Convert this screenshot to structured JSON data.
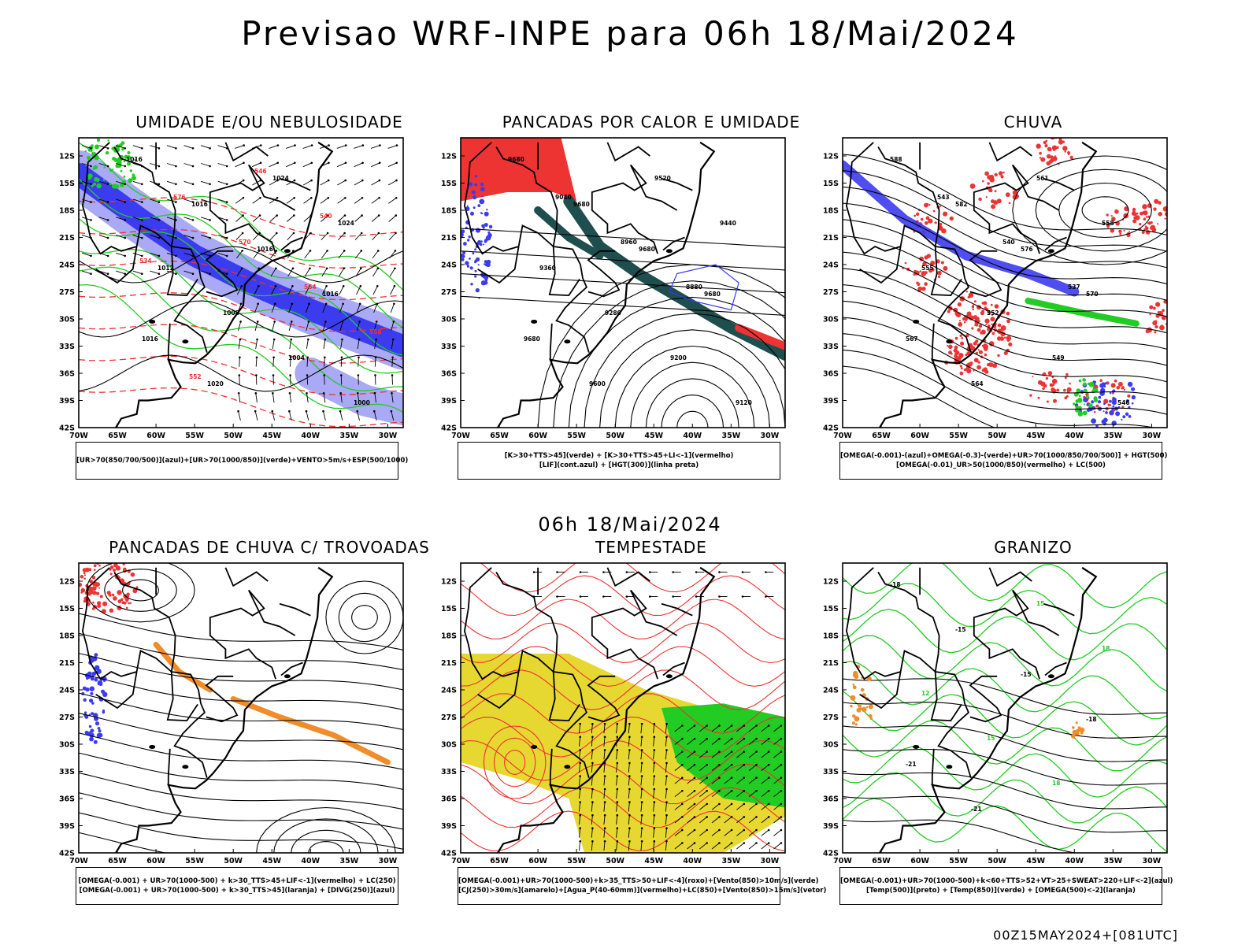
{
  "title": "Previsao WRF-INPE  para 06h 18/Mai/2024",
  "mid_title": "06h 18/Mai/2024",
  "footer": "00Z15MAY2024+[081UTC]",
  "axes": {
    "lat_labels": [
      "12S",
      "15S",
      "18S",
      "21S",
      "24S",
      "27S",
      "30S",
      "33S",
      "36S",
      "39S",
      "42S"
    ],
    "lon_labels": [
      "70W",
      "65W",
      "60W",
      "55W",
      "50W",
      "45W",
      "40W",
      "35W",
      "30W"
    ]
  },
  "panels": [
    {
      "title": "UMIDADE E/OU NEBULOSIDADE",
      "legend": [
        "[UR>70(850/700/500)](azul)+[UR>70(1000/850)](verde)+VENTO>5m/s+ESP(500/1000)"
      ],
      "contour_labels": [
        "1016",
        "1016",
        "1016",
        "1016",
        "1016",
        "1020",
        "1024",
        "1024",
        "1012",
        "1008",
        "1004",
        "1000",
        "576",
        "570",
        "564",
        "558",
        "552",
        "546",
        "540",
        "534"
      ]
    },
    {
      "title": "PANCADAS POR CALOR E UMIDADE",
      "legend": [
        "[K>30+TTS>45](verde) + [K>30+TTS>45+LI<-1](vermelho)",
        "[LIF](cont.azul) + [HGT(300)](linha preta)"
      ],
      "contour_labels": [
        "9680",
        "9680",
        "9680",
        "9680",
        "9680",
        "9600",
        "9520",
        "9440",
        "9360",
        "9280",
        "9200",
        "9120",
        "9040",
        "8960",
        "8880"
      ]
    },
    {
      "title": "CHUVA",
      "legend": [
        "[OMEGA(-0.001)-(azul)+OMEGA(-0.3)-(verde)+UR>70(1000/850/700/500)] + HGT(500)",
        "[OMEGA(-0.01)_UR>50(1000/850)(vermelho) + LC(500)"
      ],
      "contour_labels": [
        "588",
        "582",
        "576",
        "570",
        "567",
        "564",
        "561",
        "558",
        "555",
        "552",
        "549",
        "546",
        "543",
        "540",
        "537"
      ]
    },
    {
      "title": "PANCADAS DE CHUVA C/ TROVOADAS",
      "legend": [
        "[OMEGA(-0.001) + UR>70(1000-500) + k>30_TTS>45+LIF<-1](vermelho) + LC(250)",
        "[OMEGA(-0.001) + UR>70(1000-500) + k>30_TTS>45](laranja) + [DIVG(250)](azul)"
      ],
      "contour_labels": []
    },
    {
      "title": "TEMPESTADE",
      "legend": [
        "[OMEGA(-0.001)+UR>70(1000-500)+k>35_TTS>50+LIF<-4](roxo)+[Vento(850)>10m/s](verde)",
        "[CJ(250)>30m/s](amarelo)+[Agua_P(40-60mm)](vermelho)+LC(850)+[Vento(850)>15m/s](vetor)"
      ],
      "contour_labels": []
    },
    {
      "title": "GRANIZO",
      "legend": [
        "[OMEGA(-0.001)+UR>70(1000-500)+k<60+TTS>52+VT>25+SWEAT>220+LIF<-2](azul)",
        "[Temp(500)](preto) + [Temp(850)](verde) + [OMEGA(500)<-2](laranja)"
      ],
      "contour_labels": [
        "-18",
        "-15",
        "-15",
        "-18",
        "-21",
        "-21",
        "15",
        "18",
        "12",
        "15",
        "18"
      ]
    }
  ],
  "colors": {
    "blue_dark": "#3b3bf0",
    "blue_light": "#a9a9f5",
    "green": "#22cc22",
    "red": "#ee3333",
    "teal": "#1f4e4e",
    "orange": "#f08c2a",
    "yellow": "#e6d830",
    "contour_red": "#f03030"
  }
}
